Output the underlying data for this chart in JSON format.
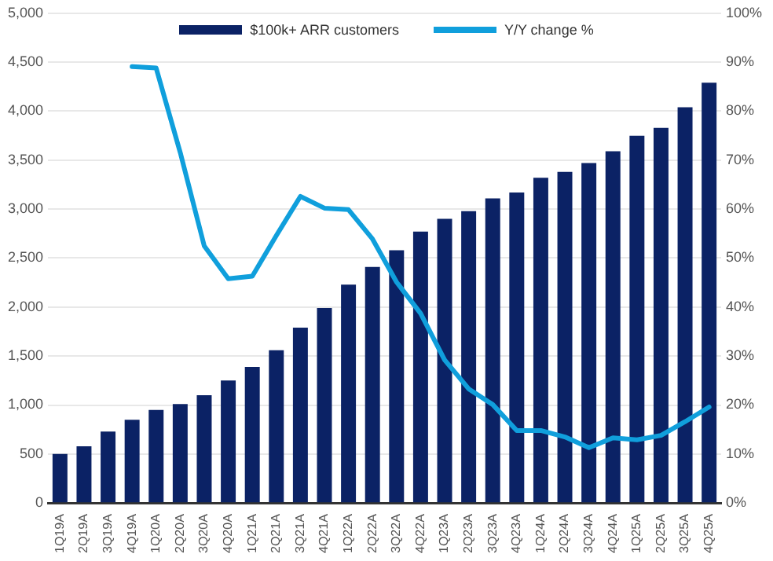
{
  "chart_data": {
    "type": "bar",
    "categories": [
      "1Q19A",
      "2Q19A",
      "3Q19A",
      "4Q19A",
      "1Q20A",
      "2Q20A",
      "3Q20A",
      "4Q20A",
      "1Q21A",
      "2Q21A",
      "3Q21A",
      "4Q21A",
      "1Q22A",
      "2Q22A",
      "3Q22A",
      "4Q22A",
      "1Q23A",
      "2Q23A",
      "3Q23A",
      "4Q23A",
      "1Q24A",
      "2Q24A",
      "3Q24A",
      "4Q24A",
      "1Q25A",
      "2Q25A",
      "3Q25A",
      "4Q25A"
    ],
    "series": [
      {
        "name": "$100k+ ARR customers",
        "color": "#0b2265",
        "values": [
          500,
          580,
          730,
          850,
          950,
          1010,
          1100,
          1250,
          1390,
          1560,
          1790,
          1990,
          2230,
          2410,
          2580,
          2770,
          2900,
          2980,
          3110,
          3170,
          3320,
          3380,
          3470,
          3590,
          3750,
          3830,
          4040,
          4290
        ]
      },
      {
        "name": "Y/Y change %",
        "type": "line",
        "axis": "y2",
        "color": "#109fdc",
        "values": [
          null,
          null,
          null,
          89.1,
          88.8,
          71.6,
          52.5,
          45.8,
          46.3,
          54.6,
          62.6,
          60.2,
          59.9,
          53.9,
          45.1,
          38.7,
          29.2,
          23.3,
          20.1,
          14.8,
          14.8,
          13.5,
          11.3,
          13.3,
          12.9,
          13.8,
          16.6,
          19.6
        ]
      }
    ],
    "ylim": [
      0,
      5000
    ],
    "yticks": [
      0,
      {
        "value": 500,
        "label": "500"
      },
      {
        "value": 1000,
        "label": "1,000"
      },
      {
        "value": 1500,
        "label": "1,500"
      },
      {
        "value": 2000,
        "label": "2,000"
      },
      {
        "value": 2500,
        "label": "2,500"
      },
      {
        "value": 3000,
        "label": "3,000"
      },
      {
        "value": 3500,
        "label": "3,500"
      },
      {
        "value": 4000,
        "label": "4,000"
      },
      {
        "value": 4500,
        "label": "4,500"
      },
      {
        "value": 5000,
        "label": "5,000"
      }
    ],
    "y2lim": [
      0,
      100
    ],
    "y2ticks": [
      {
        "value": 0,
        "label": "0%"
      },
      {
        "value": 10,
        "label": "10%"
      },
      {
        "value": 20,
        "label": "20%"
      },
      {
        "value": 30,
        "label": "30%"
      },
      {
        "value": 40,
        "label": "40%"
      },
      {
        "value": 50,
        "label": "50%"
      },
      {
        "value": 60,
        "label": "60%"
      },
      {
        "value": 70,
        "label": "70%"
      },
      {
        "value": 80,
        "label": "80%"
      },
      {
        "value": 90,
        "label": "90%"
      },
      {
        "value": 100,
        "label": "100%"
      }
    ],
    "grid": "y",
    "legend": "top",
    "marker": "none",
    "line_style": "solid"
  }
}
